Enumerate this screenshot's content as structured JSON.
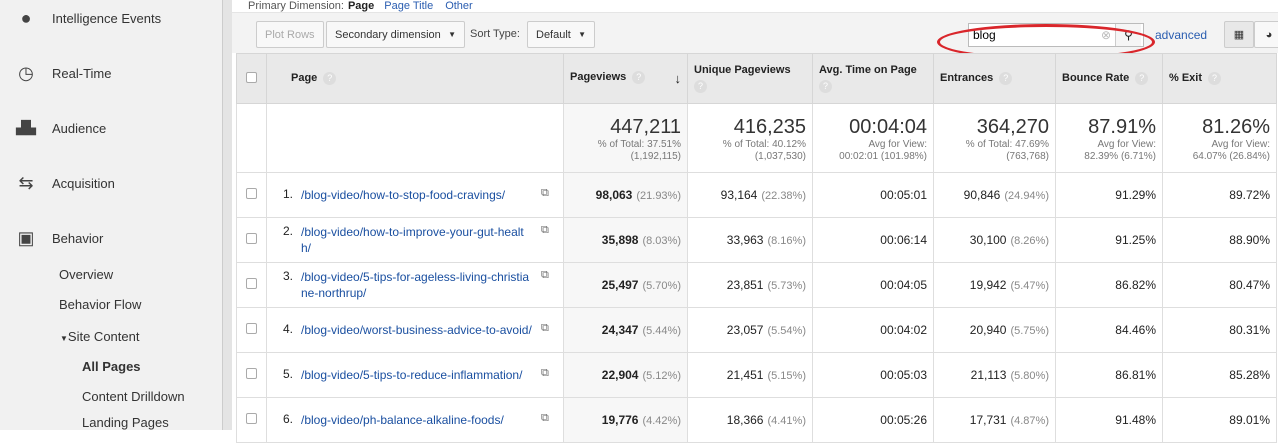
{
  "sidebar": {
    "items": [
      {
        "label": "Intelligence Events",
        "icon": "lightbulb-icon"
      },
      {
        "label": "Real-Time",
        "icon": "clock-icon"
      },
      {
        "label": "Audience",
        "icon": "people-icon"
      },
      {
        "label": "Acquisition",
        "icon": "arrows-icon"
      },
      {
        "label": "Behavior",
        "icon": "layout-icon"
      }
    ],
    "behavior_sub": [
      "Overview",
      "Behavior Flow"
    ],
    "site_content": "Site Content",
    "site_content_sub": [
      "All Pages",
      "Content Drilldown",
      "Landing Pages"
    ]
  },
  "primary": {
    "label": "Primary Dimension:",
    "current": "Page",
    "options": [
      "Page Title",
      "Other"
    ]
  },
  "toolbar": {
    "plot_rows": "Plot Rows",
    "secondary": "Secondary dimension",
    "sort_label": "Sort Type:",
    "sort_value": "Default",
    "search_value": "blog",
    "advanced": "advanced"
  },
  "headers": [
    "Page",
    "Pageviews",
    "Unique Pageviews",
    "Avg. Time on Page",
    "Entrances",
    "Bounce Rate",
    "% Exit"
  ],
  "totals": [
    {
      "value": "447,211",
      "l1": "% of Total: 37.51%",
      "l2": "(1,192,115)"
    },
    {
      "value": "416,235",
      "l1": "% of Total: 40.12%",
      "l2": "(1,037,530)"
    },
    {
      "value": "00:04:04",
      "l1": "Avg for View:",
      "l2": "00:02:01 (101.98%)"
    },
    {
      "value": "364,270",
      "l1": "% of Total: 47.69%",
      "l2": "(763,768)"
    },
    {
      "value": "87.91%",
      "l1": "Avg for View:",
      "l2": "82.39% (6.71%)"
    },
    {
      "value": "81.26%",
      "l1": "Avg for View:",
      "l2": "64.07% (26.84%)"
    }
  ],
  "rows": [
    {
      "n": "1.",
      "page": "/blog-video/how-to-stop-food-cravings/",
      "pv": "98,063",
      "pvp": "(21.93%)",
      "upv": "93,164",
      "upvp": "(22.38%)",
      "time": "00:05:01",
      "ent": "90,846",
      "entp": "(24.94%)",
      "bounce": "91.29%",
      "exit": "89.72%"
    },
    {
      "n": "2.",
      "page": "/blog-video/how-to-improve-your-gut-health/",
      "pv": "35,898",
      "pvp": "(8.03%)",
      "upv": "33,963",
      "upvp": "(8.16%)",
      "time": "00:06:14",
      "ent": "30,100",
      "entp": "(8.26%)",
      "bounce": "91.25%",
      "exit": "88.90%"
    },
    {
      "n": "3.",
      "page": "/blog-video/5-tips-for-ageless-living-christiane-northrup/",
      "pv": "25,497",
      "pvp": "(5.70%)",
      "upv": "23,851",
      "upvp": "(5.73%)",
      "time": "00:04:05",
      "ent": "19,942",
      "entp": "(5.47%)",
      "bounce": "86.82%",
      "exit": "80.47%"
    },
    {
      "n": "4.",
      "page": "/blog-video/worst-business-advice-to-avoid/",
      "pv": "24,347",
      "pvp": "(5.44%)",
      "upv": "23,057",
      "upvp": "(5.54%)",
      "time": "00:04:02",
      "ent": "20,940",
      "entp": "(5.75%)",
      "bounce": "84.46%",
      "exit": "80.31%"
    },
    {
      "n": "5.",
      "page": "/blog-video/5-tips-to-reduce-inflammation/",
      "pv": "22,904",
      "pvp": "(5.12%)",
      "upv": "21,451",
      "upvp": "(5.15%)",
      "time": "00:05:03",
      "ent": "21,113",
      "entp": "(5.80%)",
      "bounce": "86.81%",
      "exit": "85.28%"
    },
    {
      "n": "6.",
      "page": "/blog-video/ph-balance-alkaline-foods/",
      "pv": "19,776",
      "pvp": "(4.42%)",
      "upv": "18,366",
      "upvp": "(4.41%)",
      "time": "00:05:26",
      "ent": "17,731",
      "entp": "(4.87%)",
      "bounce": "91.48%",
      "exit": "89.01%"
    }
  ]
}
